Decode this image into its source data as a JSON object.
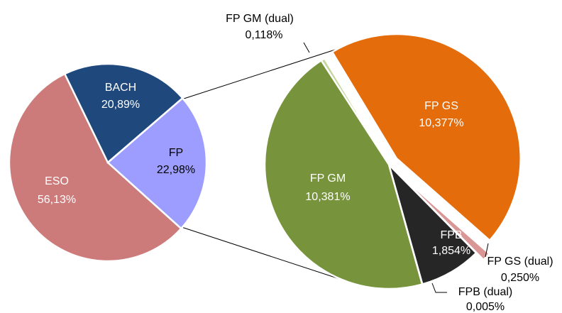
{
  "chart_data": [
    {
      "type": "pie",
      "categories": [
        "ESO",
        "BACH",
        "FP"
      ],
      "values": [
        56.13,
        20.89,
        22.98
      ],
      "value_labels": [
        "56,13%",
        "20,89%",
        "22,98%"
      ],
      "colors": [
        "#cd7b7a",
        "#1f497d",
        "#9d9dff"
      ],
      "exploded": [
        false,
        false,
        false
      ]
    },
    {
      "type": "pie",
      "categories": [
        "FP GM (dual)",
        "FP GS",
        "FP GS (dual)",
        "FPB",
        "FPB (dual)",
        "FP GM"
      ],
      "values": [
        0.118,
        10.377,
        0.25,
        1.854,
        0.005,
        10.381
      ],
      "value_labels": [
        "0,118%",
        "10,377%",
        "0,250%",
        "1,854%",
        "0,005%",
        "10,381%"
      ],
      "colors": [
        "#c3d69b",
        "#e46c0a",
        "#d99694",
        "#262626",
        "#f2f2f2",
        "#77933c"
      ],
      "exploded": [
        false,
        true,
        true,
        false,
        false,
        false
      ]
    }
  ]
}
